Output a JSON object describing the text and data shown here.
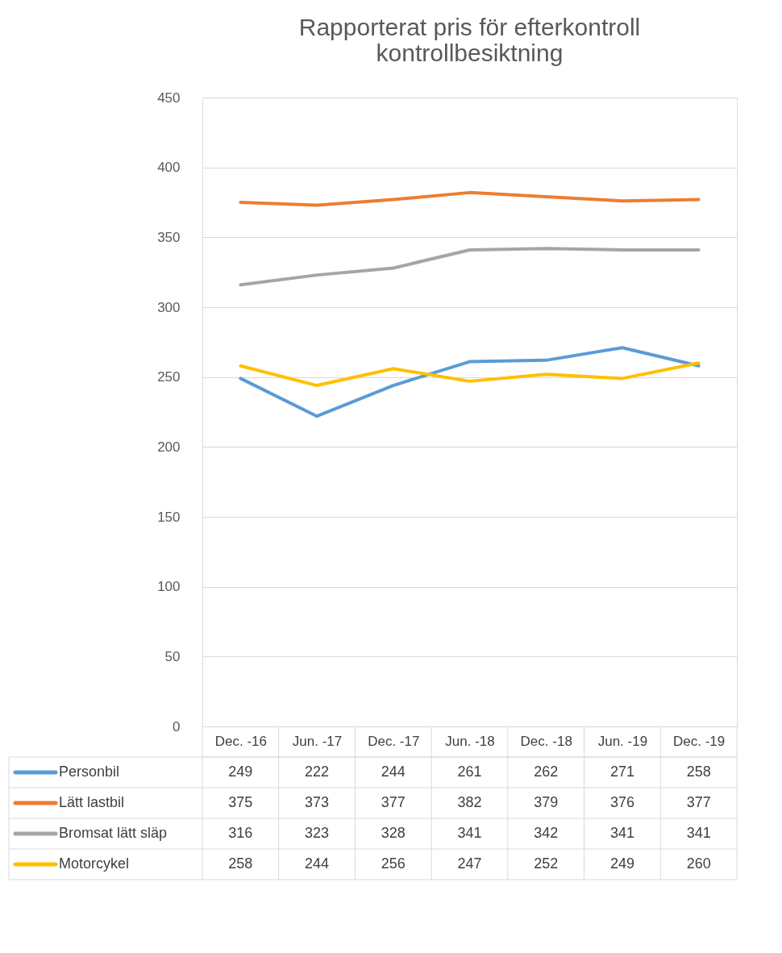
{
  "chart_data": {
    "type": "line",
    "title": "Rapporterat pris för efterkontroll\nkontrollbesiktning",
    "categories": [
      "Dec. -16",
      "Jun. -17",
      "Dec. -17",
      "Jun. -18",
      "Dec. -18",
      "Jun. -19",
      "Dec. -19"
    ],
    "series": [
      {
        "name": "Personbil",
        "color": "#5b9bd5",
        "values": [
          249,
          222,
          244,
          261,
          262,
          271,
          258
        ]
      },
      {
        "name": "Lätt lastbil",
        "color": "#ed7d31",
        "values": [
          375,
          373,
          377,
          382,
          379,
          376,
          377
        ]
      },
      {
        "name": "Bromsat lätt släp",
        "color": "#a5a5a5",
        "values": [
          316,
          323,
          328,
          341,
          342,
          341,
          341
        ]
      },
      {
        "name": "Motorcykel",
        "color": "#ffc000",
        "values": [
          258,
          244,
          256,
          247,
          252,
          249,
          260
        ]
      }
    ],
    "ylim": [
      0,
      450
    ],
    "yticks": [
      0,
      50,
      100,
      150,
      200,
      250,
      300,
      350,
      400,
      450
    ],
    "grid": "y",
    "legend": "bottom",
    "data_labels": true,
    "marker": "none",
    "line_style": "solid"
  }
}
